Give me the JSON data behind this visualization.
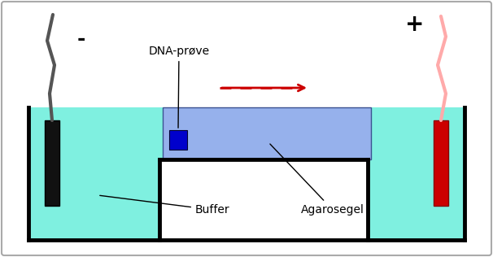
{
  "fig_width": 6.06,
  "fig_height": 3.16,
  "dpi": 100,
  "bg_color": "#ffffff",
  "border_color": "#aaaaaa",
  "tub_fill_color": "#7ff0e0",
  "tub_border_color": "#000000",
  "gel_color": "#99aaee",
  "electrode_neg_color": "#111111",
  "electrode_pos_color": "#cc0000",
  "wire_neg_color": "#555555",
  "wire_pos_color": "#ffaaaa",
  "dna_color": "#0000cc",
  "arrow_color": "#cc0000",
  "minus_sign": "-",
  "plus_sign": "+",
  "label_dna": "DNA-prøve",
  "label_buffer": "Buffer",
  "label_agarose": "Agarosegel",
  "label_fontsize": 10
}
